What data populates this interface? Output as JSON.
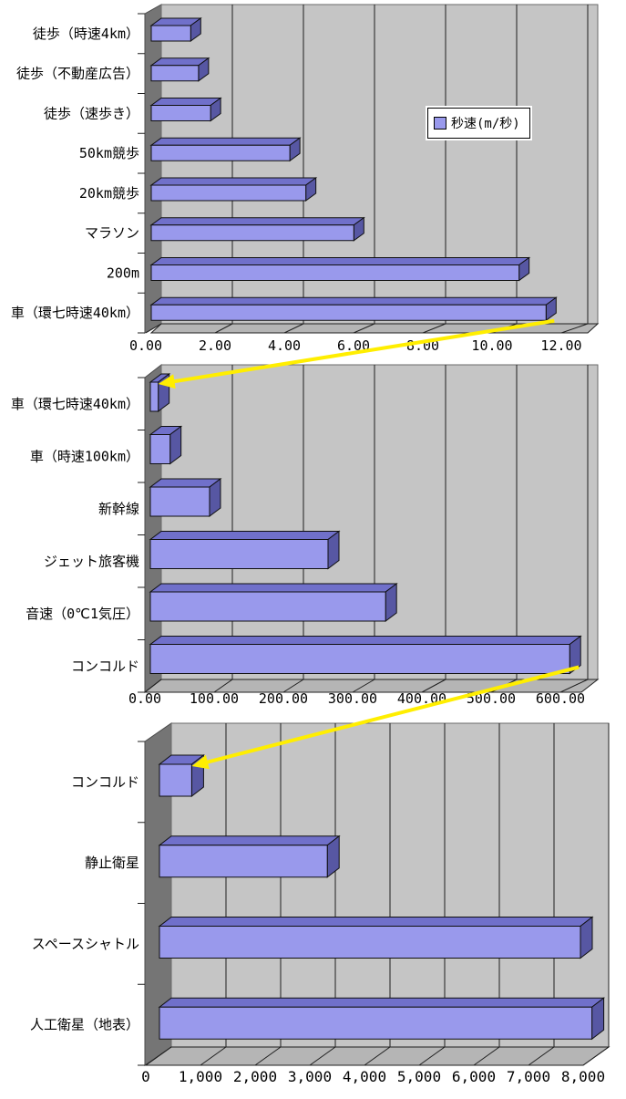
{
  "legend": {
    "label": "秒速(m/秒)"
  },
  "colors": {
    "page_bg": "#FFFFFF",
    "plot_bg": "#C5C5C5",
    "wall": "#757575",
    "floor": "#B5B5B5",
    "gridline": "#1F1F1F",
    "outline": "#101010",
    "bar_front": "#9999EC",
    "bar_top": "#7070CA",
    "bar_end": "#5757A3",
    "arrow": "#FFEE00",
    "text": "#000000"
  },
  "chart_data": [
    {
      "type": "bar",
      "orientation": "horizontal",
      "style": "3d",
      "unit": "m/秒",
      "legend": "秒速(m/秒)",
      "legend_position": "inside-right",
      "grid": true,
      "categories": [
        "徒歩（時速4km）",
        "徒歩（不動産広告）",
        "徒歩（速歩き）",
        "50km競歩",
        "20km競歩",
        "マラソン",
        "200m",
        "車（環七時速40km）"
      ],
      "values": [
        1.11,
        1.33,
        1.67,
        3.9,
        4.35,
        5.7,
        10.35,
        11.11
      ],
      "xlim": [
        0,
        12
      ],
      "xtick_labels": [
        "0.00",
        "2.00",
        "4.00",
        "6.00",
        "8.00",
        "10.00",
        "12.00"
      ]
    },
    {
      "type": "bar",
      "orientation": "horizontal",
      "style": "3d",
      "unit": "m/秒",
      "grid": true,
      "categories": [
        "車（環七時速40km）",
        "車（時速100km）",
        "新幹線",
        "ジェット旅客機",
        "音速（0℃1気圧）",
        "コンコルド"
      ],
      "values": [
        11.11,
        27.78,
        83.3,
        250,
        331,
        590
      ],
      "xlim": [
        0,
        600
      ],
      "xtick_labels": [
        "0.00",
        "100.00",
        "200.00",
        "300.00",
        "400.00",
        "500.00",
        "600.00"
      ]
    },
    {
      "type": "bar",
      "orientation": "horizontal",
      "style": "3d",
      "unit": "m/秒",
      "grid": true,
      "categories": [
        "コンコルド",
        "静止衛星",
        "スペースシャトル",
        "人工衛星（地表）"
      ],
      "values": [
        590,
        3070,
        7700,
        7910
      ],
      "xlim": [
        0,
        8000
      ],
      "xtick_labels": [
        "0",
        "1,000",
        "2,000",
        "3,000",
        "4,000",
        "5,000",
        "6,000",
        "7,000",
        "8,000"
      ]
    }
  ],
  "arrows": [
    {
      "from_chart": 0,
      "from_category": "車（環七時速40km）",
      "to_chart": 1,
      "to_category": "車（環七時速40km）"
    },
    {
      "from_chart": 1,
      "from_category": "コンコルド",
      "to_chart": 2,
      "to_category": "コンコルド"
    }
  ]
}
